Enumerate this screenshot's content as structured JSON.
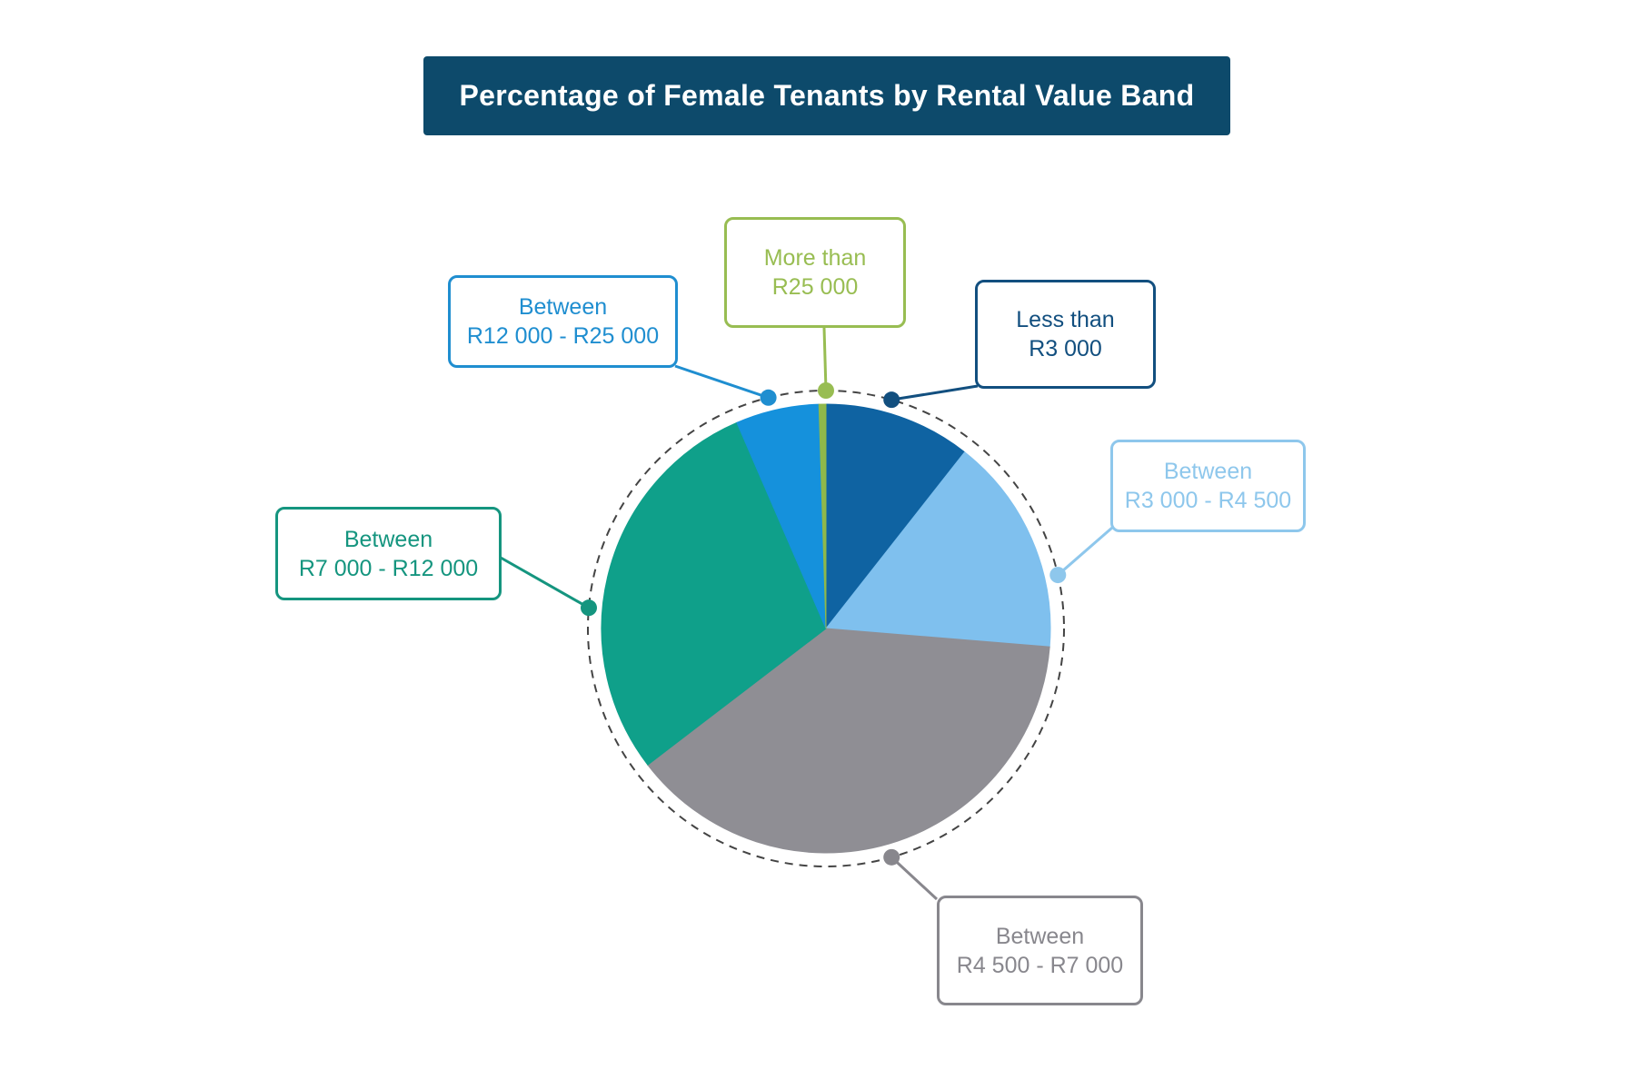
{
  "title": "Percentage of Female Tenants by Rental Value Band",
  "chart_data": {
    "type": "pie",
    "title": "Percentage of Female Tenants by Rental Value Band",
    "start_angle_deg": 0,
    "direction": "clockwise",
    "slices": [
      {
        "label_line1": "Less than",
        "label_line2": "R3 000",
        "value": 10.6,
        "color": "#0f63a2"
      },
      {
        "label_line1": "Between",
        "label_line2": "R3 000 - R4 500",
        "value": 15.7,
        "color": "#7fc0ee"
      },
      {
        "label_line1": "Between",
        "label_line2": "R4 500 - R7 000",
        "value": 38.3,
        "color": "#8f8e94"
      },
      {
        "label_line1": "Between",
        "label_line2": "R7 000 - R12 000",
        "value": 28.9,
        "color": "#0fa08a"
      },
      {
        "label_line1": "Between",
        "label_line2": "R12 000 - R25 000",
        "value": 6.0,
        "color": "#1591dc"
      },
      {
        "label_line1": "More than",
        "label_line2": "R25 000",
        "value": 0.5,
        "color": "#8fb84a"
      }
    ],
    "label_colors": [
      "#124f7f",
      "#8ec7ec",
      "#88878d",
      "#15957f",
      "#1f8ed0",
      "#98bd52"
    ],
    "legend": "callout-boxes"
  }
}
